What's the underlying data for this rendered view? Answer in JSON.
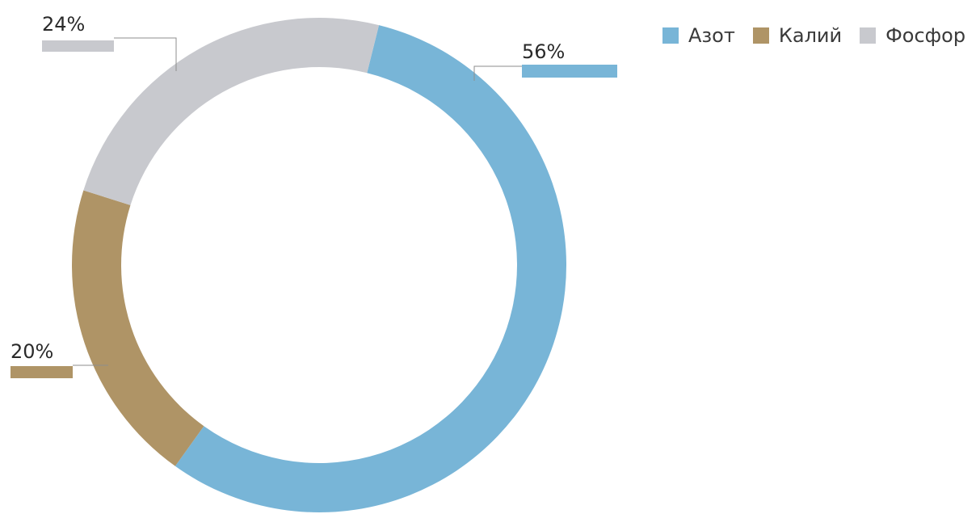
{
  "chart_data": {
    "type": "pie",
    "variant": "donut",
    "slices": [
      {
        "name": "Азот",
        "value": 56,
        "label": "56%",
        "color": "#78b5d7"
      },
      {
        "name": "Калий",
        "value": 20,
        "label": "20%",
        "color": "#af9466"
      },
      {
        "name": "Фосфор",
        "value": 24,
        "label": "24%",
        "color": "#c8c9ce"
      }
    ],
    "legend_position": "top-right"
  }
}
